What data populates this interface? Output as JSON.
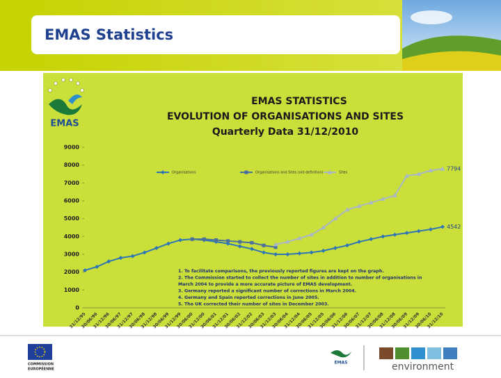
{
  "slide_title": "EMAS Statistics",
  "logo_text": "EMAS",
  "chart_data": {
    "type": "line",
    "title_lines": [
      "EMAS STATISTICS",
      "EVOLUTION OF ORGANISATIONS AND SITES",
      "Quarterly Data 31/12/2010"
    ],
    "categories": [
      "31/12/95",
      "30/06/96",
      "31/12/96",
      "30/06/97",
      "31/12/97",
      "30/06/98",
      "31/12/98",
      "30/06/99",
      "31/12/99",
      "30/06/00",
      "31/12/00",
      "30/06/01",
      "31/12/01",
      "30/06/02",
      "31/12/02",
      "30/06/03",
      "31/12/03",
      "30/06/04",
      "31/12/04",
      "30/06/05",
      "31/12/05",
      "30/06/06",
      "31/12/06",
      "30/06/07",
      "31/12/07",
      "30/06/08",
      "31/12/08",
      "30/06/09",
      "31/12/09",
      "30/06/10",
      "31/12/10"
    ],
    "series": [
      {
        "name": "Organisations",
        "color": "#2e75b6",
        "marker": "diamond",
        "values": [
          2100,
          2300,
          2600,
          2800,
          2900,
          3100,
          3350,
          3600,
          3800,
          3850,
          3800,
          3700,
          3600,
          3450,
          3300,
          3100,
          3000,
          3000,
          3050,
          3100,
          3200,
          3350,
          3500,
          3700,
          3850,
          4000,
          4100,
          4200,
          4300,
          4400,
          4542
        ]
      },
      {
        "name": "Organisations and Sites (old definition)",
        "color": "#4a6f9c",
        "marker": "square",
        "values": [
          null,
          null,
          null,
          null,
          null,
          null,
          null,
          null,
          null,
          3850,
          3850,
          3800,
          3750,
          3700,
          3650,
          3500,
          3400,
          null,
          null,
          null,
          null,
          null,
          null,
          null,
          null,
          null,
          null,
          null,
          null,
          null,
          null
        ]
      },
      {
        "name": "Sites",
        "color": "#a9b7c6",
        "marker": "triangle",
        "values": [
          null,
          null,
          null,
          null,
          null,
          null,
          null,
          null,
          null,
          null,
          null,
          null,
          null,
          null,
          null,
          null,
          3550,
          3700,
          3900,
          4100,
          4500,
          5000,
          5500,
          5700,
          5900,
          6100,
          6300,
          7400,
          7500,
          7700,
          7794
        ]
      }
    ],
    "ylim": [
      0,
      9000
    ],
    "yticks": [
      0,
      1000,
      2000,
      3000,
      4000,
      5000,
      6000,
      7000,
      8000,
      9000
    ],
    "notes": [
      "1.   To facilitate comparisons, the previously reported figures are kept on the graph.",
      "2.   The Commission started to collect the number of sites in addition to number of organisations in",
      "      March 2004 to provide a more accurate picture of EMAS development.",
      "3.   Germany reported a significant number of corrections in March 2004.",
      "4.   Germany and Spain reported corrections in June 2005.",
      "5.   The UK corrected their number of sites in December 2003."
    ]
  },
  "footer": {
    "commission": [
      "COMMISSION",
      "EUROPÉENNE"
    ],
    "emas": "EMAS",
    "environment": "environment"
  }
}
